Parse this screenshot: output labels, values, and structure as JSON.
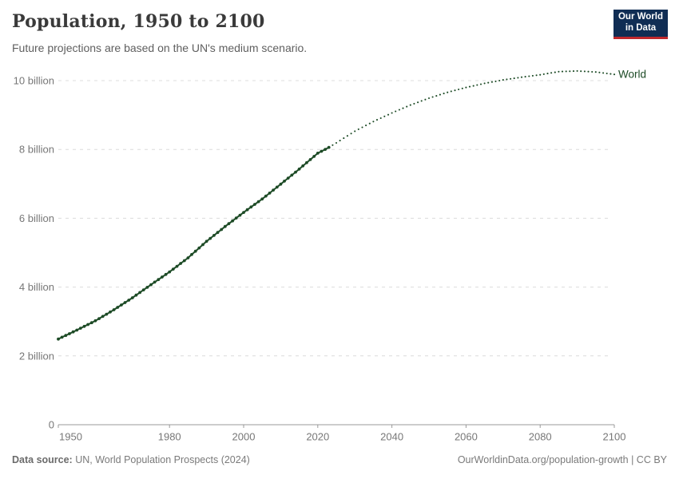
{
  "header": {
    "title": "Population, 1950 to 2100",
    "subtitle": "Future projections are based on the UN's medium scenario."
  },
  "logo": {
    "line1": "Our World",
    "line2": "in Data",
    "bg_color": "#102d54",
    "accent_color": "#c0282d"
  },
  "footer": {
    "source_label": "Data source:",
    "source_text": " UN, World Population Prospects (2024)",
    "credit": "OurWorldinData.org/population-growth | CC BY"
  },
  "chart_data": {
    "type": "line",
    "title": "Population, 1950 to 2100",
    "xlabel": "",
    "ylabel": "",
    "xlim": [
      1950,
      2100
    ],
    "ylim": [
      0,
      10.55
    ],
    "grid": "horizontal-dashed",
    "legend_position": "line-end-label",
    "x_ticks": [
      1950,
      1980,
      2000,
      2020,
      2040,
      2060,
      2080,
      2100
    ],
    "y_ticks": [
      {
        "value": 0,
        "label": "0"
      },
      {
        "value": 2,
        "label": "2 billion"
      },
      {
        "value": 4,
        "label": "4 billion"
      },
      {
        "value": 6,
        "label": "6 billion"
      },
      {
        "value": 8,
        "label": "8 billion"
      },
      {
        "value": 10,
        "label": "10 billion"
      }
    ],
    "unit": "billion people",
    "series": [
      {
        "name": "World",
        "color": "#1d4b26",
        "historical": {
          "years": [
            1950,
            1955,
            1960,
            1965,
            1970,
            1975,
            1980,
            1985,
            1990,
            1995,
            2000,
            2005,
            2010,
            2015,
            2020,
            2023
          ],
          "values": [
            2.49,
            2.75,
            3.02,
            3.34,
            3.69,
            4.07,
            4.44,
            4.85,
            5.33,
            5.76,
            6.17,
            6.56,
            6.99,
            7.43,
            7.89,
            8.06
          ]
        },
        "projection": {
          "years": [
            2023,
            2025,
            2030,
            2035,
            2040,
            2045,
            2050,
            2055,
            2060,
            2065,
            2070,
            2075,
            2080,
            2085,
            2090,
            2095,
            2100
          ],
          "values": [
            8.06,
            8.19,
            8.53,
            8.81,
            9.06,
            9.29,
            9.49,
            9.66,
            9.8,
            9.92,
            10.02,
            10.1,
            10.17,
            10.26,
            10.28,
            10.25,
            10.18
          ]
        }
      }
    ],
    "colors": {
      "gridline": "#dcdcdc",
      "axis": "#999999",
      "tick_label": "#777777"
    }
  }
}
